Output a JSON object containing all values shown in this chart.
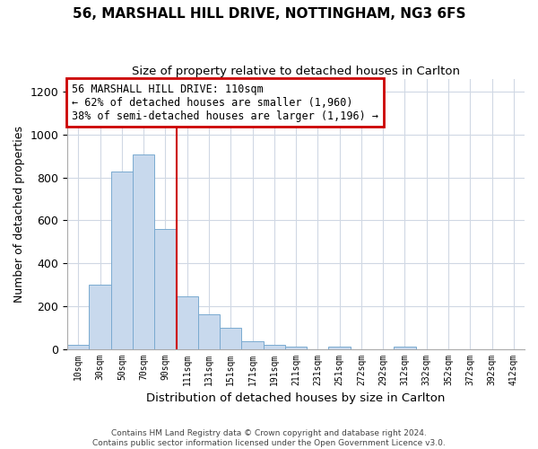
{
  "title": "56, MARSHALL HILL DRIVE, NOTTINGHAM, NG3 6FS",
  "subtitle": "Size of property relative to detached houses in Carlton",
  "xlabel": "Distribution of detached houses by size in Carlton",
  "ylabel": "Number of detached properties",
  "bar_color": "#c8d9ed",
  "bar_edge_color": "#7aaad0",
  "grid_color": "#d0d8e4",
  "annotation_box_color": "#cc0000",
  "vline_color": "#cc0000",
  "categories": [
    "10sqm",
    "30sqm",
    "50sqm",
    "70sqm",
    "90sqm",
    "111sqm",
    "131sqm",
    "151sqm",
    "171sqm",
    "191sqm",
    "211sqm",
    "231sqm",
    "251sqm",
    "272sqm",
    "292sqm",
    "312sqm",
    "332sqm",
    "352sqm",
    "372sqm",
    "392sqm",
    "412sqm"
  ],
  "values": [
    18,
    300,
    830,
    910,
    560,
    245,
    162,
    100,
    35,
    18,
    12,
    0,
    12,
    0,
    0,
    10,
    0,
    0,
    0,
    0,
    0
  ],
  "vline_position": 4.5,
  "annotation_text": "56 MARSHALL HILL DRIVE: 110sqm\n← 62% of detached houses are smaller (1,960)\n38% of semi-detached houses are larger (1,196) →",
  "ylim": [
    0,
    1260
  ],
  "yticks": [
    0,
    200,
    400,
    600,
    800,
    1000,
    1200
  ],
  "footnote1": "Contains HM Land Registry data © Crown copyright and database right 2024.",
  "footnote2": "Contains public sector information licensed under the Open Government Licence v3.0."
}
